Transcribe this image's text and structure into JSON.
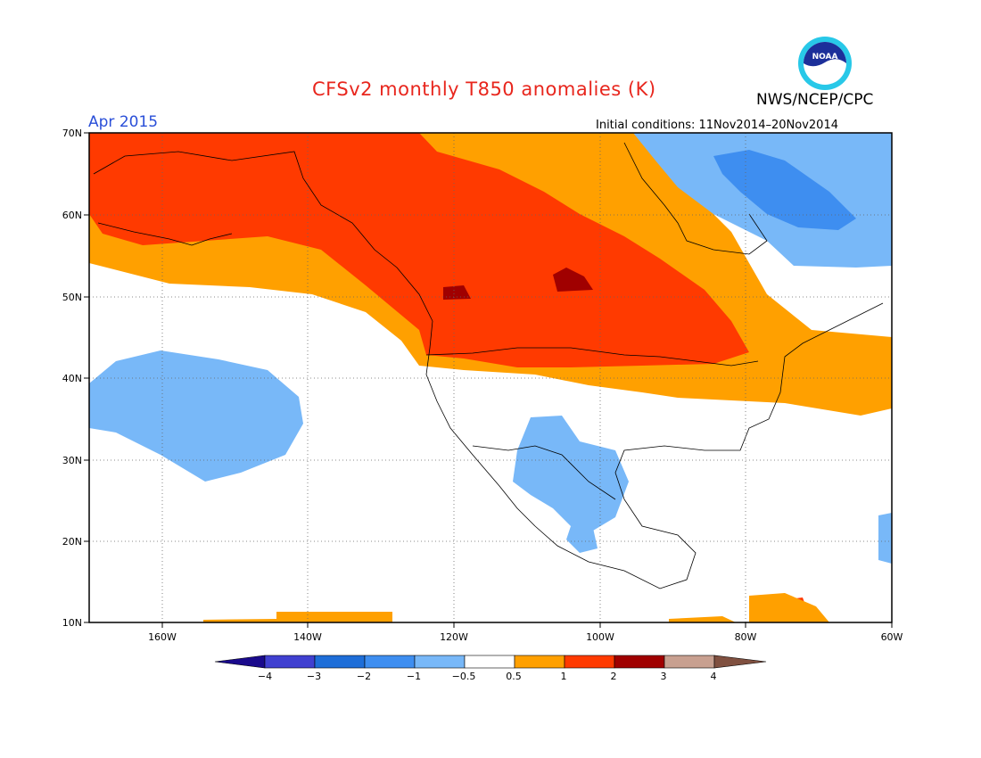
{
  "title": "CFSv2 monthly T850 anomalies (K)",
  "month": "Apr 2015",
  "agency": "NWS/NCEP/CPC",
  "initial_conditions": "Initial conditions: 11Nov2014–20Nov2014",
  "logo_text": "NOAA",
  "axes": {
    "lat_labels": [
      "70N",
      "60N",
      "50N",
      "40N",
      "30N",
      "20N",
      "10N"
    ],
    "lon_labels": [
      "160W",
      "140W",
      "120W",
      "100W",
      "80W",
      "60W"
    ],
    "lat_range": [
      10,
      70
    ],
    "lon_range": [
      -170,
      -60
    ]
  },
  "legend": {
    "ticks": [
      "−4",
      "−3",
      "−2",
      "−1",
      "−0.5",
      "0.5",
      "1",
      "2",
      "3",
      "4"
    ],
    "colors": [
      "#1a0a8c",
      "#4040d0",
      "#1e6ed8",
      "#3e8ef0",
      "#78b8f8",
      "#ffffff",
      "#ffa000",
      "#ff3a00",
      "#a00000",
      "#c8a090",
      "#805040"
    ]
  }
}
